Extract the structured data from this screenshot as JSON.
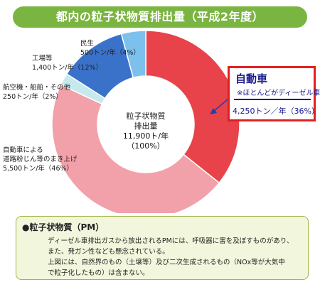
{
  "title": "都内の粒子状物質排出量（平成2年度）",
  "chart_data": {
    "type": "pie",
    "series": [
      {
        "label_lines": [
          "自動車",
          "※ほとんどがディーゼル車",
          "4,250トン／年（36%）"
        ],
        "value": 4250,
        "percent": 36,
        "color": "#e8434a"
      },
      {
        "label_lines": [
          "自動車による",
          "道路粉じん等のまき上げ",
          "5,500トン/年（46%）"
        ],
        "value": 5500,
        "percent": 46,
        "color": "#f2a0aa"
      },
      {
        "label_lines": [
          "航空機・船舶・その他",
          "250トン/年（2%）"
        ],
        "value": 250,
        "percent": 2,
        "color": "#c7e9ee"
      },
      {
        "label_lines": [
          "工場等",
          "1,400トン/年（12%）"
        ],
        "value": 1400,
        "percent": 12,
        "color": "#3b72c9"
      },
      {
        "label_lines": [
          "民生",
          "500トン/年（4%）"
        ],
        "value": 500,
        "percent": 4,
        "color": "#7cc0ee"
      }
    ],
    "center_label": [
      "粒子状物質",
      "排出量",
      "11,900ト/年",
      "（100%）"
    ]
  },
  "note": {
    "heading": "●粒子状物質（PM）",
    "lines": [
      "ディーゼル車排出ガスから放出されるPMには、呼吸器に害を及ぼすものがあり、",
      "また、発ガン性なども懸念されている。",
      "上図には、自然界のもの（土壌等）及び二次生成されるもの（NOx等が大気中",
      "で粒子化したもの）は含まない。"
    ]
  }
}
